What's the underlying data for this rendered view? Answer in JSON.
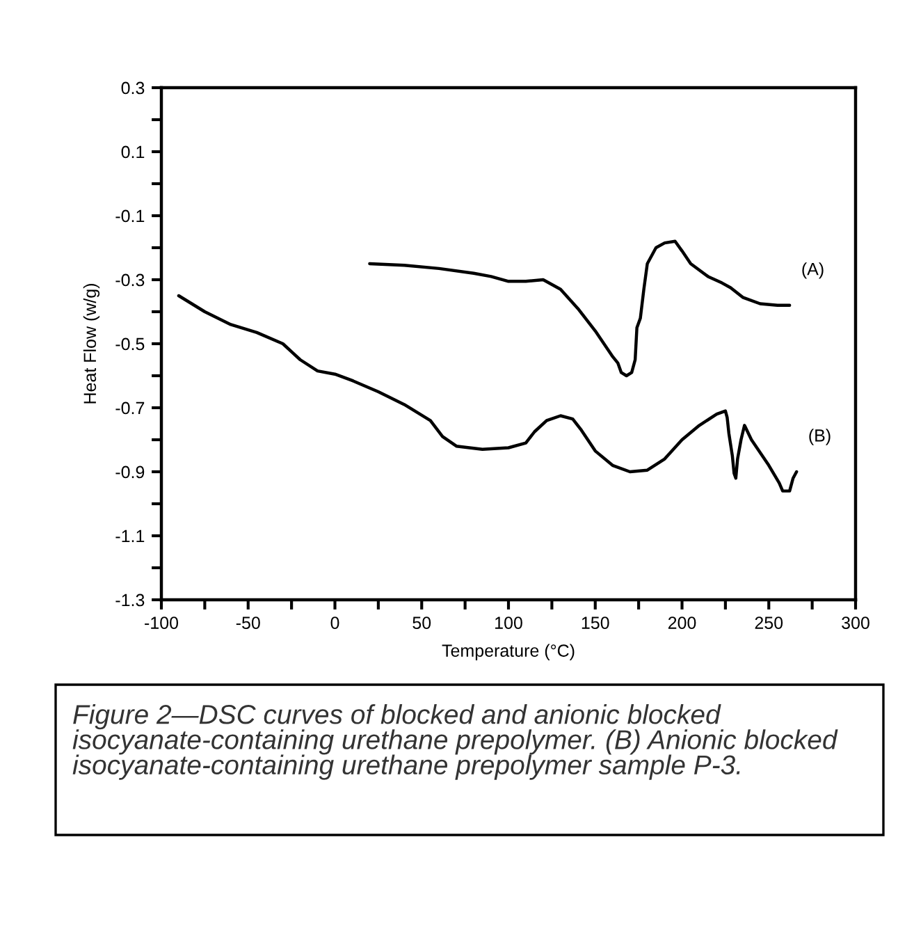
{
  "chart_data": {
    "type": "line",
    "xlabel": "Temperature (°C)",
    "ylabel": "Heat Flow (w/g)",
    "xlim": [
      -100,
      300
    ],
    "ylim": [
      -1.3,
      0.3
    ],
    "xticks": [
      -100,
      {
        "value": -75,
        "label": null
      },
      -50,
      {
        "value": -25,
        "label": null
      },
      0,
      {
        "value": 25,
        "label": null
      },
      50,
      {
        "value": 75,
        "label": null
      },
      100,
      {
        "value": 125,
        "label": null
      },
      150,
      {
        "value": 175,
        "label": null
      },
      200,
      {
        "value": 225,
        "label": null
      },
      250,
      {
        "value": 275,
        "label": null
      },
      300
    ],
    "yticks": [
      -1.3,
      {
        "value": -1.2,
        "label": null
      },
      -1.1,
      {
        "value": -1.0,
        "label": null
      },
      -0.9,
      {
        "value": -0.8,
        "label": null
      },
      -0.7,
      {
        "value": -0.6,
        "label": null
      },
      -0.5,
      {
        "value": -0.4,
        "label": null
      },
      -0.3,
      {
        "value": -0.2,
        "label": null
      },
      -0.1,
      {
        "value": 0.0,
        "label": null
      },
      0.1,
      {
        "value": 0.2,
        "label": null
      },
      0.3
    ],
    "grid": false,
    "marker": "none",
    "line_style": "solid",
    "series": [
      {
        "name": "(A)",
        "color": "#000000",
        "x": [
          20,
          40,
          60,
          80,
          90,
          100,
          110,
          120,
          130,
          140,
          150,
          160,
          163,
          165,
          168,
          171,
          173,
          174,
          176,
          178,
          180,
          185,
          190,
          196,
          200,
          205,
          215,
          223,
          228,
          235,
          245,
          255,
          262
        ],
        "values": [
          -0.25,
          -0.255,
          -0.265,
          -0.28,
          -0.29,
          -0.305,
          -0.305,
          -0.3,
          -0.33,
          -0.39,
          -0.46,
          -0.54,
          -0.56,
          -0.59,
          -0.6,
          -0.59,
          -0.55,
          -0.45,
          -0.42,
          -0.33,
          -0.25,
          -0.2,
          -0.185,
          -0.18,
          -0.21,
          -0.25,
          -0.29,
          -0.31,
          -0.325,
          -0.355,
          -0.375,
          -0.38,
          -0.38
        ]
      },
      {
        "name": "(B)",
        "color": "#000000",
        "x": [
          -90,
          -75,
          -60,
          -45,
          -30,
          -20,
          -10,
          0,
          10,
          25,
          40,
          55,
          62,
          70,
          85,
          100,
          110,
          115,
          122,
          130,
          137,
          142,
          150,
          160,
          170,
          180,
          190,
          200,
          210,
          220,
          225,
          226,
          227,
          229,
          230,
          231,
          232,
          234,
          236,
          240,
          250,
          256,
          258,
          262,
          264,
          266
        ],
        "values": [
          -0.35,
          -0.4,
          -0.44,
          -0.465,
          -0.5,
          -0.55,
          -0.585,
          -0.595,
          -0.615,
          -0.65,
          -0.69,
          -0.74,
          -0.79,
          -0.82,
          -0.83,
          -0.825,
          -0.81,
          -0.775,
          -0.74,
          -0.725,
          -0.735,
          -0.77,
          -0.835,
          -0.88,
          -0.9,
          -0.895,
          -0.86,
          -0.8,
          -0.755,
          -0.72,
          -0.71,
          -0.73,
          -0.78,
          -0.85,
          -0.905,
          -0.92,
          -0.86,
          -0.8,
          -0.755,
          -0.8,
          -0.88,
          -0.935,
          -0.96,
          -0.96,
          -0.92,
          -0.9
        ]
      }
    ],
    "annotations": [
      "Figure 2—DSC curves of blocked and anionic blocked isocyanate-containing urethane prepolymer. (B) Anionic blocked isocyanate-containing urethane prepolymer sample P-3."
    ]
  }
}
